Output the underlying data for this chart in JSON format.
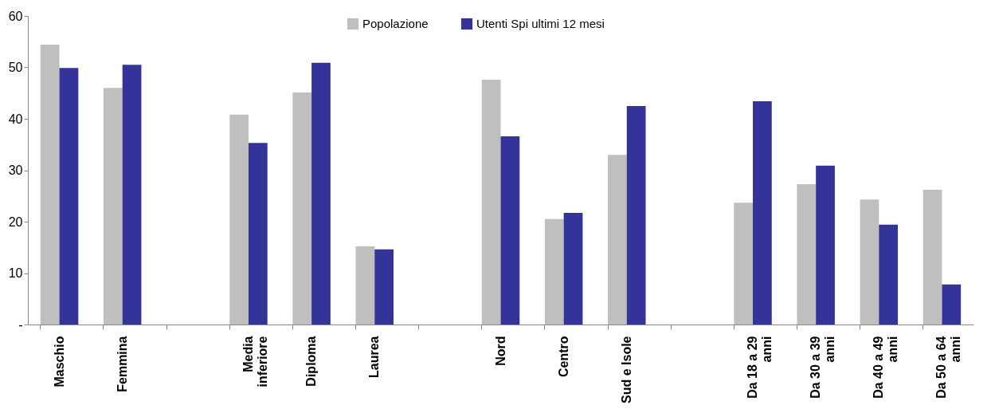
{
  "chart_data": {
    "type": "bar",
    "categories": [
      "Maschio",
      "Femmina",
      null,
      "Media inferiore",
      "Diploma",
      "Laurea",
      null,
      "Nord",
      "Centro",
      "Sud e Isole",
      null,
      "Da 18 a 29 anni",
      "Da 30 a 39 anni",
      "Da 40 a 49 anni",
      "Da 50 a 64 anni"
    ],
    "series": [
      {
        "name": "Popolazione",
        "color": "#bfbfbf",
        "values": [
          54.4,
          46.0,
          null,
          40.8,
          45.1,
          15.2,
          null,
          47.6,
          20.5,
          33.0,
          null,
          23.7,
          27.3,
          24.3,
          26.2
        ]
      },
      {
        "name": "Utenti Spi ultimi 12 mesi",
        "color": "#333399",
        "values": [
          49.9,
          50.5,
          null,
          35.3,
          50.9,
          14.6,
          null,
          36.6,
          21.7,
          42.5,
          null,
          43.4,
          30.9,
          19.4,
          7.8
        ]
      }
    ],
    "ylim": [
      0,
      60
    ],
    "yticks": [
      {
        "value": 0,
        "label": "-"
      },
      10,
      20,
      30,
      40,
      50,
      60
    ],
    "grid": false,
    "legend": "top"
  }
}
